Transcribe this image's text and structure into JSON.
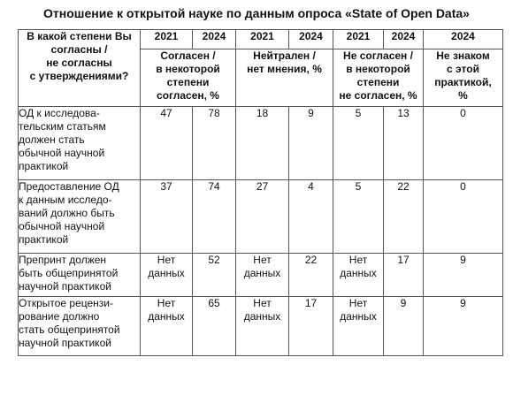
{
  "title": "Отношение к открытой науке по данным опроса «State of Open Data»",
  "question": "В какой степени Вы\nсогласны /\nне согласны\nс утверждениями?",
  "years": [
    "2021",
    "2024",
    "2021",
    "2024",
    "2021",
    "2024",
    "2024"
  ],
  "categories": [
    "Согласен /\nв некоторой\nстепени\nсогласен, %",
    "Нейтрален /\nнет мнения, %",
    "Не согласен /\nв некоторой\nстепени\nне согласен, %",
    "Не знаком\nс этой\nпрактикой,\n%"
  ],
  "rows": [
    {
      "statement": "ОД к исследова-\nтельским статьям\nдолжен стать\nобычной научной\nпрактикой",
      "values": [
        "47",
        "78",
        "18",
        "9",
        "5",
        "13",
        "0"
      ]
    },
    {
      "statement": "Предоставление ОД\nк данным исследо-\nваний должно быть\nобычной научной\nпрактикой",
      "values": [
        "37",
        "74",
        "27",
        "4",
        "5",
        "22",
        "0"
      ]
    },
    {
      "statement": "Препринт должен\nбыть общепринятой\nнаучной практикой",
      "values": [
        "Нет\nданных",
        "52",
        "Нет\nданных",
        "22",
        "Нет\nданных",
        "17",
        "9"
      ]
    },
    {
      "statement": "Открытое рецензи-\nрование должно\nстать общепринятой\nнаучной практикой",
      "values": [
        "Нет\nданных",
        "65",
        "Нет\nданных",
        "17",
        "Нет\nданных",
        "9",
        "9"
      ]
    }
  ]
}
